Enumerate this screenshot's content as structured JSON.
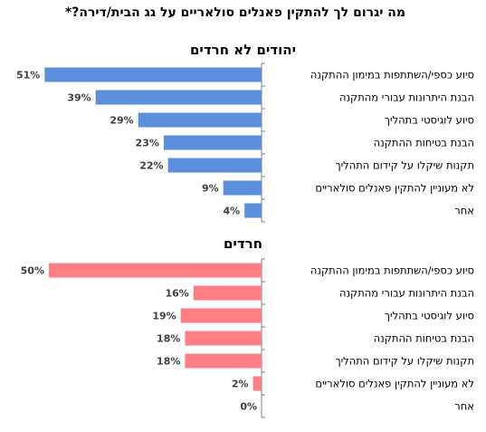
{
  "chart_data": [
    {
      "type": "bar",
      "orientation": "horizontal",
      "title": "יהודים לא חרדים",
      "categories": [
        "סיוע כספי/השתתפות במימון ההתקנה",
        "הבנת היתרונות עבורי מהתקנה",
        "סיוע לוגיסטי בתהליך",
        "הבנת בטיחות ההתקנה",
        "תקנות שיקלו על קידום התהליך",
        "לא מעוניין להתקין פאנלים סולאריים",
        "אחר"
      ],
      "values": [
        51,
        39,
        29,
        23,
        22,
        9,
        4
      ],
      "labels": [
        "51%",
        "39%",
        "29%",
        "23%",
        "22%",
        "9%",
        "4%"
      ],
      "unit": "%",
      "color": "#5b8fd9",
      "xlim": [
        0,
        52
      ]
    },
    {
      "type": "bar",
      "orientation": "horizontal",
      "title": "חרדים",
      "categories": [
        "סיוע כספי/השתתפות במימון ההתקנה",
        "הבנת היתרונות עבורי מהתקנה",
        "סיוע לוגיסטי בתהליך",
        "הבנת בטיחות ההתקנה",
        "תקנות שיקלו על קידום התהליך",
        "לא מעוניין להתקין פאנלים סולאריים",
        "אחר"
      ],
      "values": [
        50,
        16,
        19,
        18,
        18,
        2,
        0
      ],
      "labels": [
        "50%",
        "16%",
        "19%",
        "18%",
        "18%",
        "2%",
        "0%"
      ],
      "unit": "%",
      "color": "#ff7f86",
      "xlim": [
        0,
        52
      ]
    }
  ],
  "header": {
    "title": "מה יגרום לך להתקין פאנלים סולאריים על גג הבית/דירה?*"
  }
}
